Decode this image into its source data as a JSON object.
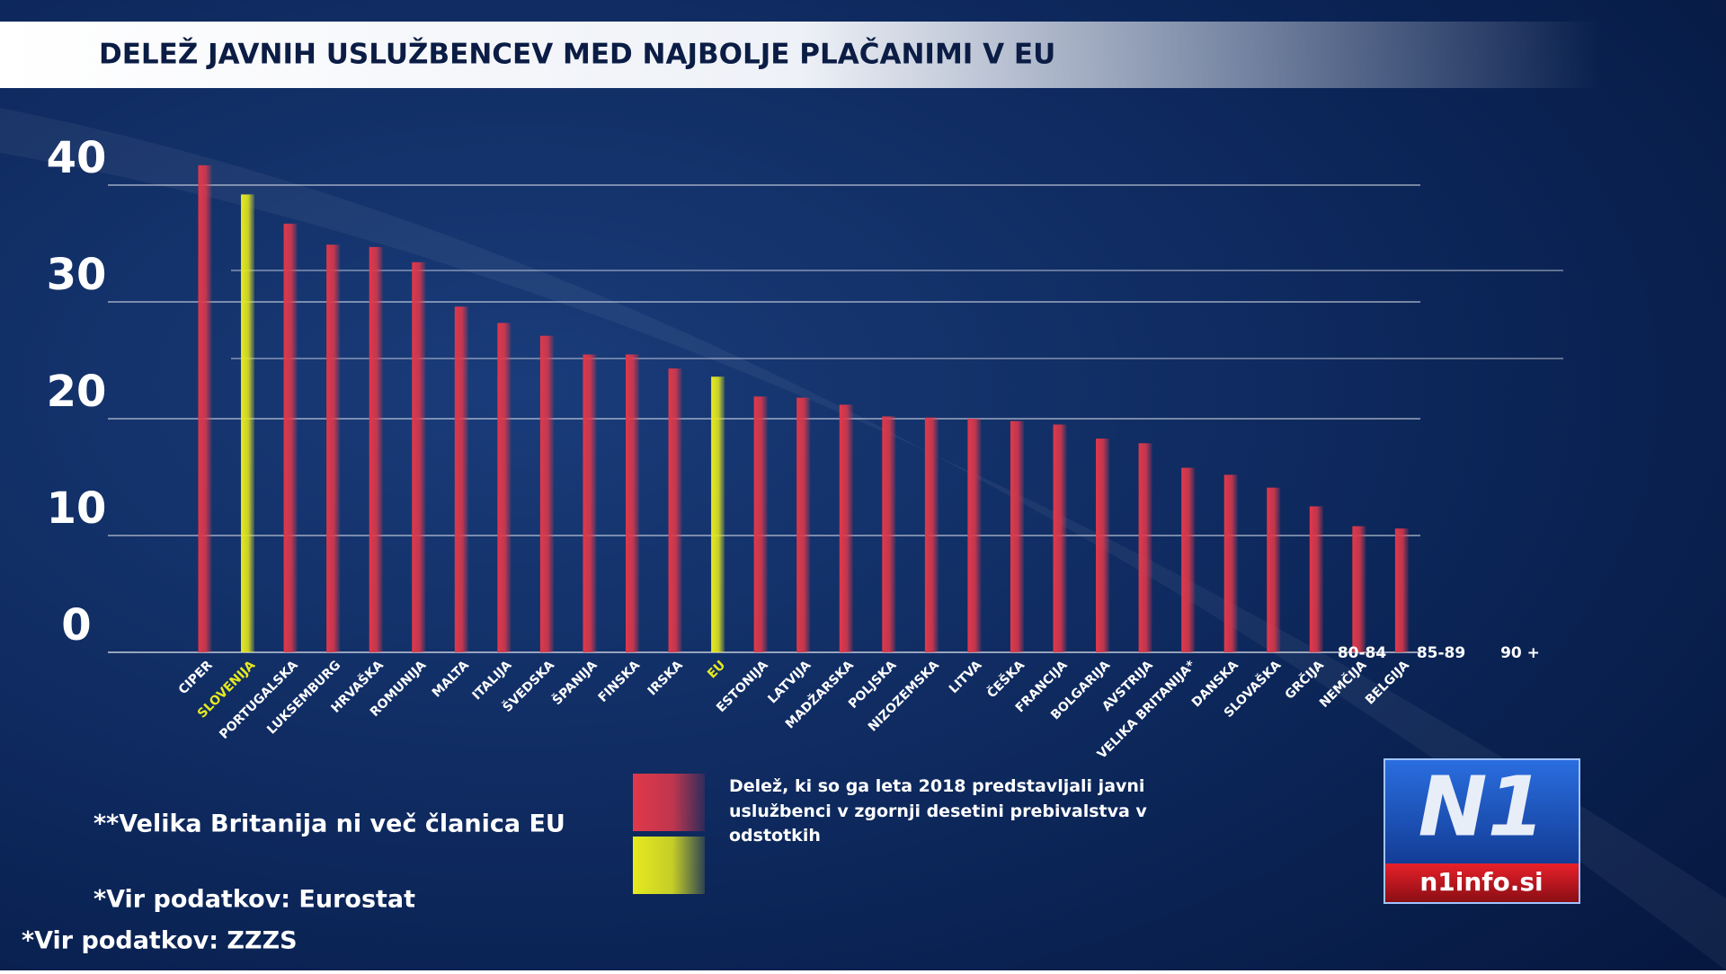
{
  "chart_data": {
    "type": "bar",
    "title": "DELEŽ JAVNIH USLUŽBENCEV MED NAJBOLJE PLAČANIMI V EU",
    "categories": [
      "CIPER",
      "SLOVENIJA",
      "PORTUGALSKA",
      "LUKSEMBURG",
      "HRVAŠKA",
      "ROMUNIJA",
      "MALTA",
      "ITALIJA",
      "ŠVEDSKA",
      "ŠPANIJA",
      "FINSKA",
      "IRSKA",
      "EU",
      "ESTONIJA",
      "LATVIJA",
      "MADŽARSKA",
      "POLJSKA",
      "NIZOZEMSKA",
      "LITVA",
      "ČEŠKA",
      "FRANCIJA",
      "BOLGARIJA",
      "AVSTRIJA",
      "VELIKA BRITANIJA*",
      "DANSKA",
      "SLOVAŠKA",
      "GRČIJA",
      "NEMČIJA",
      "BELGIJA"
    ],
    "values": [
      41.7,
      39.2,
      36.7,
      34.9,
      34.7,
      33.4,
      29.6,
      28.2,
      27.1,
      25.5,
      25.5,
      24.3,
      23.6,
      21.9,
      21.8,
      21.2,
      20.2,
      20.1,
      20.0,
      19.8,
      19.5,
      18.3,
      17.9,
      15.8,
      15.2,
      14.1,
      12.5,
      10.8,
      10.6
    ],
    "colors": [
      "#e0384a",
      "#e6ea1e",
      "#e0384a",
      "#e0384a",
      "#e0384a",
      "#e0384a",
      "#e0384a",
      "#e0384a",
      "#e0384a",
      "#e0384a",
      "#e0384a",
      "#e0384a",
      "#e6ea1e",
      "#e0384a",
      "#e0384a",
      "#e0384a",
      "#e0384a",
      "#e0384a",
      "#e0384a",
      "#e0384a",
      "#e0384a",
      "#e0384a",
      "#e0384a",
      "#e0384a",
      "#e0384a",
      "#e0384a",
      "#e0384a",
      "#e0384a",
      "#e0384a"
    ],
    "label_colors": [
      "#ffffff",
      "#e6ea1e",
      "#ffffff",
      "#ffffff",
      "#ffffff",
      "#ffffff",
      "#ffffff",
      "#ffffff",
      "#ffffff",
      "#ffffff",
      "#ffffff",
      "#ffffff",
      "#e6ea1e",
      "#ffffff",
      "#ffffff",
      "#ffffff",
      "#ffffff",
      "#ffffff",
      "#ffffff",
      "#ffffff",
      "#ffffff",
      "#ffffff",
      "#ffffff",
      "#ffffff",
      "#ffffff",
      "#ffffff",
      "#ffffff",
      "#ffffff",
      "#ffffff"
    ],
    "ylim": [
      0,
      40
    ],
    "yticks": [
      0,
      10,
      20,
      30,
      40
    ],
    "grid": true,
    "legend": "Delež, ki so ga leta 2018 predstavljali javni uslužbenci v zgornji desetini prebivalstva v odstotkih",
    "extra_labels": [
      "80-84",
      "85-89",
      "90 +"
    ],
    "footnotes": [
      "**Velika Britanija ni več članica EU",
      "*Vir podatkov: Eurostat",
      "*Vir podatkov:  ZZZS"
    ]
  },
  "logo": {
    "mark": "N1",
    "site": "n1info.si"
  }
}
